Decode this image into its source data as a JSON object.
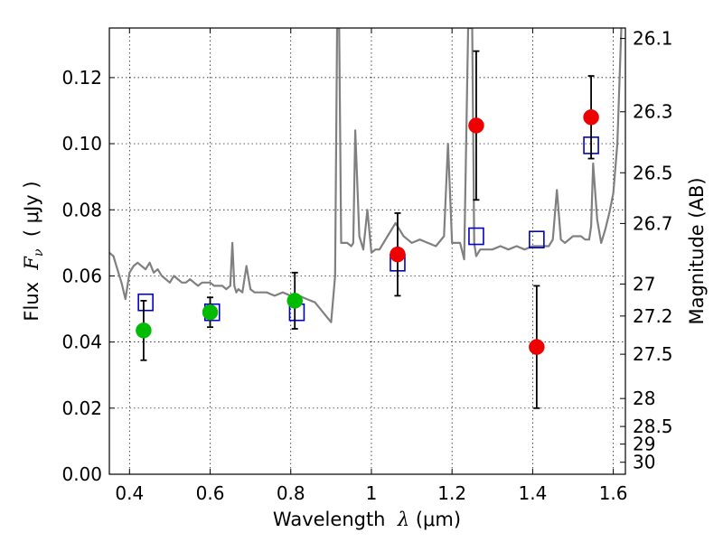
{
  "chart_data": {
    "type": "scatter",
    "xlabel": {
      "prefix": "Wavelength  ",
      "symbol": "λ",
      "unit": " (μm)"
    },
    "ylabel": {
      "prefix": "Flux  ",
      "symbol": "F",
      "subscript": "ν",
      "unit": "  ( μJy )"
    },
    "y2label": "Magnitude (AB)",
    "xlim": [
      0.35,
      1.63
    ],
    "ylim": [
      0.0,
      0.135
    ],
    "x_ticks": [
      0.4,
      0.6,
      0.8,
      1.0,
      1.2,
      1.4,
      1.6
    ],
    "x_tick_labels": [
      "0.4",
      "0.6",
      "0.8",
      "1",
      "1.2",
      "1.4",
      "1.6"
    ],
    "y_ticks": [
      0.0,
      0.02,
      0.04,
      0.06,
      0.08,
      0.1,
      0.12
    ],
    "y_tick_labels": [
      "0.00",
      "0.02",
      "0.04",
      "0.06",
      "0.08",
      "0.10",
      "0.12"
    ],
    "mag_ticks": [
      26.1,
      26.3,
      26.5,
      26.7,
      27,
      27.2,
      27.5,
      28,
      28.5,
      29,
      30
    ],
    "mag_tick_labels": [
      "26.1",
      "26.3",
      "26.5",
      "26.7",
      "27",
      "27.2",
      "27.5",
      "28",
      "28.5",
      "29",
      "30"
    ],
    "grid": true,
    "colors": {
      "spectrum": "#808080",
      "model": "#0000cc",
      "optical": "#00bb00",
      "nir": "#ee0000",
      "errorbar": "#000000"
    },
    "series": [
      {
        "kind": "line",
        "x": [
          0.35,
          0.36,
          0.37,
          0.38,
          0.39,
          0.4,
          0.41,
          0.42,
          0.43,
          0.44,
          0.45,
          0.46,
          0.47,
          0.48,
          0.49,
          0.5,
          0.51,
          0.52,
          0.53,
          0.54,
          0.55,
          0.56,
          0.57,
          0.58,
          0.59,
          0.6,
          0.61,
          0.62,
          0.63,
          0.64,
          0.65,
          0.655,
          0.66,
          0.665,
          0.67,
          0.68,
          0.69,
          0.7,
          0.71,
          0.72,
          0.74,
          0.76,
          0.78,
          0.8,
          0.82,
          0.84,
          0.86,
          0.88,
          0.9,
          0.91,
          0.915,
          0.92,
          0.925,
          0.93,
          0.94,
          0.95,
          0.955,
          0.96,
          0.97,
          0.98,
          0.99,
          1.0,
          1.01,
          1.02,
          1.03,
          1.04,
          1.06,
          1.08,
          1.09,
          1.1,
          1.12,
          1.14,
          1.16,
          1.18,
          1.19,
          1.2,
          1.21,
          1.22,
          1.23,
          1.24,
          1.245,
          1.25,
          1.255,
          1.26,
          1.27,
          1.28,
          1.3,
          1.32,
          1.34,
          1.36,
          1.38,
          1.4,
          1.42,
          1.44,
          1.45,
          1.46,
          1.47,
          1.48,
          1.5,
          1.52,
          1.53,
          1.54,
          1.545,
          1.55,
          1.56,
          1.57,
          1.58,
          1.59,
          1.6,
          1.61,
          1.62
        ],
        "y": [
          0.067,
          0.066,
          0.062,
          0.058,
          0.053,
          0.061,
          0.063,
          0.064,
          0.063,
          0.062,
          0.064,
          0.061,
          0.062,
          0.06,
          0.059,
          0.058,
          0.06,
          0.059,
          0.058,
          0.058,
          0.059,
          0.058,
          0.057,
          0.058,
          0.058,
          0.058,
          0.057,
          0.057,
          0.057,
          0.056,
          0.057,
          0.07,
          0.057,
          0.055,
          0.056,
          0.055,
          0.063,
          0.056,
          0.055,
          0.055,
          0.055,
          0.054,
          0.055,
          0.054,
          0.054,
          0.053,
          0.052,
          0.049,
          0.046,
          0.06,
          0.135,
          0.135,
          0.07,
          0.07,
          0.07,
          0.069,
          0.07,
          0.104,
          0.072,
          0.068,
          0.08,
          0.067,
          0.068,
          0.068,
          0.07,
          0.072,
          0.076,
          0.072,
          0.071,
          0.07,
          0.071,
          0.07,
          0.069,
          0.072,
          0.1,
          0.07,
          0.07,
          0.07,
          0.065,
          0.135,
          0.135,
          0.135,
          0.07,
          0.066,
          0.068,
          0.068,
          0.068,
          0.069,
          0.068,
          0.069,
          0.068,
          0.069,
          0.069,
          0.069,
          0.071,
          0.086,
          0.071,
          0.07,
          0.072,
          0.072,
          0.071,
          0.071,
          0.075,
          0.094,
          0.077,
          0.07,
          0.074,
          0.079,
          0.085,
          0.1,
          0.135
        ]
      },
      {
        "kind": "model_points",
        "marker": "open-square",
        "x": [
          0.44,
          0.605,
          0.815,
          1.065,
          1.26,
          1.41,
          1.545
        ],
        "y": [
          0.052,
          0.049,
          0.049,
          0.064,
          0.072,
          0.071,
          0.0995
        ]
      },
      {
        "kind": "photometry",
        "marker": "filled-circle",
        "x": [
          0.435,
          0.6,
          0.81
        ],
        "y": [
          0.0435,
          0.049,
          0.0525
        ],
        "err": [
          0.009,
          0.0045,
          0.0085
        ]
      },
      {
        "kind": "photometry",
        "marker": "filled-circle",
        "x": [
          1.065,
          1.26,
          1.41,
          1.545
        ],
        "y": [
          0.0665,
          0.1055,
          0.0385,
          0.108
        ],
        "err": [
          0.0125,
          0.0225,
          0.0185,
          0.0125
        ]
      }
    ]
  }
}
